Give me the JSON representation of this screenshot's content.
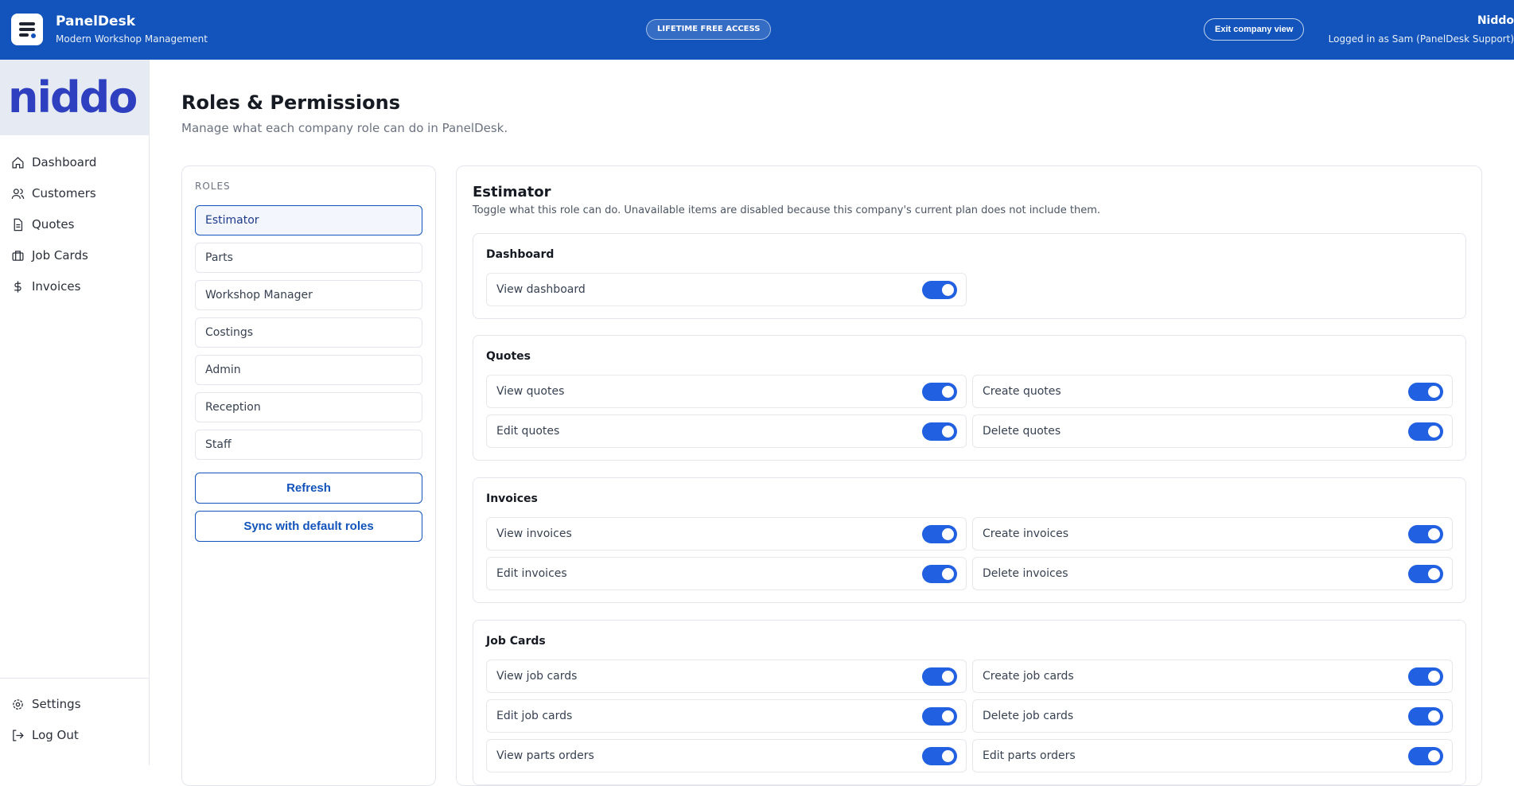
{
  "header": {
    "app_name": "PanelDesk",
    "tagline": "Modern Workshop Management",
    "badge": "LIFETIME FREE ACCESS",
    "exit_button": "Exit company view",
    "company": "Niddo",
    "logged_in": "Logged in as Sam (PanelDesk Support)",
    "color": "#1254bb"
  },
  "sidebar": {
    "logo_text": "niddo",
    "items": [
      {
        "label": "Dashboard",
        "icon": "home-icon"
      },
      {
        "label": "Customers",
        "icon": "users-icon"
      },
      {
        "label": "Quotes",
        "icon": "document-icon"
      },
      {
        "label": "Job Cards",
        "icon": "briefcase-icon"
      },
      {
        "label": "Invoices",
        "icon": "dollar-icon"
      }
    ],
    "bottom": [
      {
        "label": "Settings",
        "icon": "gear-icon"
      },
      {
        "label": "Log Out",
        "icon": "logout-icon"
      }
    ]
  },
  "page": {
    "title": "Roles & Permissions",
    "subtitle": "Manage what each company role can do in PanelDesk."
  },
  "roles": {
    "label": "ROLES",
    "items": [
      "Estimator",
      "Parts",
      "Workshop Manager",
      "Costings",
      "Admin",
      "Reception",
      "Staff"
    ],
    "selected": "Estimator",
    "refresh": "Refresh",
    "sync": "Sync with default roles"
  },
  "detail": {
    "title": "Estimator",
    "description": "Toggle what this role can do. Unavailable items are disabled because this company's current plan does not include them.",
    "sections": [
      {
        "title": "Dashboard",
        "perms": [
          {
            "label": "View dashboard",
            "on": true
          }
        ]
      },
      {
        "title": "Quotes",
        "perms": [
          {
            "label": "View quotes",
            "on": true
          },
          {
            "label": "Create quotes",
            "on": true
          },
          {
            "label": "Edit quotes",
            "on": true
          },
          {
            "label": "Delete quotes",
            "on": true
          }
        ]
      },
      {
        "title": "Invoices",
        "perms": [
          {
            "label": "View invoices",
            "on": true
          },
          {
            "label": "Create invoices",
            "on": true
          },
          {
            "label": "Edit invoices",
            "on": true
          },
          {
            "label": "Delete invoices",
            "on": true
          }
        ]
      },
      {
        "title": "Job Cards",
        "perms": [
          {
            "label": "View job cards",
            "on": true
          },
          {
            "label": "Create job cards",
            "on": true
          },
          {
            "label": "Edit job cards",
            "on": true
          },
          {
            "label": "Delete job cards",
            "on": true
          },
          {
            "label": "View parts orders",
            "on": true
          },
          {
            "label": "Edit parts orders",
            "on": true
          }
        ]
      }
    ]
  }
}
